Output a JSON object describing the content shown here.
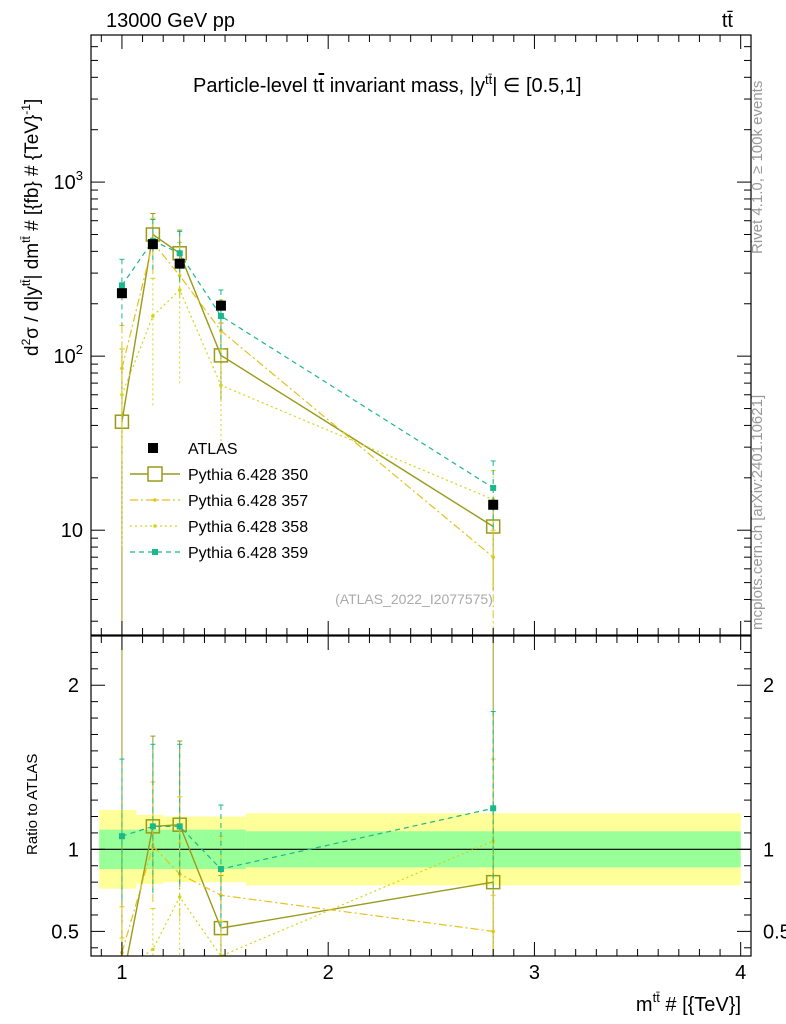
{
  "header": {
    "left": "13000 GeV pp",
    "right": "tt̄"
  },
  "side": {
    "rivet": "Rivet 4.1.0, ≥ 100k events",
    "mcplots": "mcplots.cern.ch [arXiv:2401.10621]"
  },
  "chart_data": {
    "type": "line",
    "title": "Particle-level t̄t invariant mass, |y^{tt̄}| ∈ [0.5,1]",
    "title_parts": {
      "pre": "Particle-level t",
      "bar": "t",
      "mid": " invariant mass, |y",
      "sup": "tt̄",
      "post": "| ∈ [0.5,1]"
    },
    "xlabel": "m^{tt̄} # [{TeV}]",
    "xlabel_parts": {
      "base": "m",
      "sup": "tt̄",
      "post": " # [{TeV}]"
    },
    "ylabel": "d²σ / d|y^{tt̄}| dm^{tt̄} # [{fb} # {TeV}⁻¹]",
    "ylabel_parts": {
      "p1": "d",
      "s1": "2",
      "p2": "σ / d|y",
      "s2": "tt̄",
      "p3": "| dm",
      "s3": "tt̄",
      "p4": " # [{fb} # {TeV}",
      "s4": "-1",
      "p5": "]"
    },
    "ratio_ylabel": "Ratio to ATLAS",
    "watermark": "(ATLAS_2022_I2077575)",
    "xlim": [
      0.85,
      4.05
    ],
    "ylim": [
      2.5,
      7000
    ],
    "yscale": "log",
    "ratio_ylim": [
      0.35,
      2.3
    ],
    "x_ticks": [
      1,
      2,
      3,
      4
    ],
    "x_tick_labels": [
      "1",
      "2",
      "3",
      "4"
    ],
    "y_ticks": [
      10,
      100,
      1000
    ],
    "y_tick_labels": [
      "10",
      "10^2",
      "10^3"
    ],
    "ratio_ticks": [
      0.5,
      1,
      2
    ],
    "ratio_tick_labels": [
      "0.5",
      "1",
      "2"
    ],
    "bins": [
      [
        0.89,
        1.07
      ],
      [
        1.07,
        1.2
      ],
      [
        1.2,
        1.35
      ],
      [
        1.35,
        1.6
      ],
      [
        1.6,
        4.0
      ]
    ],
    "data_band_inner": [
      0.12,
      0.12,
      0.12,
      0.12,
      0.11
    ],
    "data_band_outer": [
      0.24,
      0.21,
      0.2,
      0.2,
      0.22
    ],
    "legend": [
      "ATLAS",
      "Pythia 6.428 350",
      "Pythia 6.428 357",
      "Pythia 6.428 358",
      "Pythia 6.428 359"
    ],
    "legend_position": "middle-left",
    "data": {
      "name": "ATLAS",
      "x": [
        1.0,
        1.15,
        1.28,
        1.48,
        2.8
      ],
      "y": [
        230,
        440,
        340,
        195,
        14
      ],
      "color": "#000000"
    },
    "series": [
      {
        "name": "Pythia 6.428 350",
        "color": "#9a9a1a",
        "x": [
          1.0,
          1.15,
          1.28,
          1.48,
          2.8
        ],
        "y": [
          42,
          500,
          390,
          101,
          10.5
        ],
        "err_up": [
          110,
          660,
          530,
          155,
          14
        ],
        "err_dn": [
          2.5,
          390,
          290,
          55,
          4.5
        ],
        "ratio": [
          0.18,
          1.14,
          1.15,
          0.52,
          0.8
        ],
        "ratio_up": [
          2.3,
          1.69,
          1.66,
          0.84,
          2.3
        ],
        "ratio_dn": [
          0.35,
          0.75,
          0.77,
          0.35,
          0.35
        ]
      },
      {
        "name": "Pythia 6.428 357",
        "color": "#e6c21a",
        "x": [
          1.0,
          1.15,
          1.28,
          1.48,
          2.8
        ],
        "y": [
          85,
          450,
          290,
          140,
          7
        ],
        "err_up": [
          150,
          620,
          450,
          210,
          10
        ],
        "err_dn": [
          25,
          290,
          190,
          85,
          2.5
        ],
        "ratio": [
          0.37,
          1.02,
          0.85,
          0.72,
          0.5
        ],
        "ratio_up": [
          0.65,
          1.41,
          1.32,
          1.08,
          0.72
        ],
        "ratio_dn": [
          0.35,
          0.66,
          0.56,
          0.44,
          0.35
        ]
      },
      {
        "name": "Pythia 6.428 358",
        "color": "#d4d41a",
        "x": [
          1.0,
          1.15,
          1.28,
          1.48,
          2.8
        ],
        "y": [
          60,
          170,
          240,
          68,
          15
        ],
        "err_up": [
          110,
          280,
          350,
          110,
          22
        ],
        "err_dn": [
          8,
          50,
          70,
          30,
          4.5
        ],
        "ratio": [
          0.26,
          0.39,
          0.71,
          0.35,
          1.05
        ],
        "ratio_up": [
          0.46,
          0.64,
          1.04,
          0.56,
          1.55
        ],
        "ratio_dn": [
          0.35,
          0.35,
          0.35,
          0.35,
          0.35
        ]
      },
      {
        "name": "Pythia 6.428 359",
        "color": "#1ab88a",
        "x": [
          1.0,
          1.15,
          1.28,
          1.48,
          2.8
        ],
        "y": [
          255,
          460,
          390,
          170,
          17.5
        ],
        "err_up": [
          360,
          610,
          520,
          240,
          25
        ],
        "err_dn": [
          150,
          310,
          260,
          100,
          10
        ],
        "ratio": [
          1.08,
          1.14,
          1.14,
          0.88,
          1.25
        ],
        "ratio_up": [
          1.55,
          1.64,
          1.64,
          1.27,
          1.84
        ],
        "ratio_dn": [
          0.68,
          0.72,
          0.76,
          0.5,
          0.74
        ]
      }
    ]
  }
}
